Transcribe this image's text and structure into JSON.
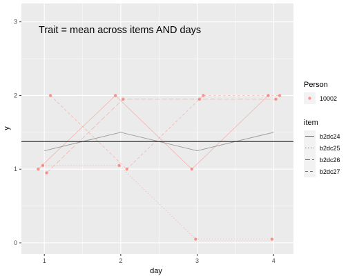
{
  "chart_data": {
    "type": "line",
    "annotation": "Trait = mean across items AND days",
    "xlabel": "day",
    "ylabel": "y",
    "x_ticks": [
      "1",
      "2",
      "3",
      "4"
    ],
    "y_ticks": [
      "0",
      "1",
      "2",
      "3"
    ],
    "xlim": [
      0.7,
      4.26
    ],
    "ylim": [
      -0.15,
      3.25
    ],
    "grid": true,
    "legend_position": "right",
    "person_legend": {
      "title": "Person",
      "entries": [
        {
          "label": "10002",
          "color": "#F8766D"
        }
      ]
    },
    "item_legend": {
      "title": "item",
      "entries": [
        {
          "label": "b2dc24",
          "dash": "solid"
        },
        {
          "label": "b2dc25",
          "dash": "dotted"
        },
        {
          "label": "b2dc26",
          "dash": "longdash"
        },
        {
          "label": "b2dc27",
          "dash": "dashed"
        }
      ]
    },
    "trait_line": {
      "y": 1.375,
      "color": "#000000"
    },
    "mean_series": {
      "color": "#999999",
      "points": [
        {
          "x": 1,
          "y": 1.25
        },
        {
          "x": 2,
          "y": 1.5
        },
        {
          "x": 3,
          "y": 1.25
        },
        {
          "x": 4,
          "y": 1.5
        }
      ]
    },
    "series": [
      {
        "item": "b2dc24",
        "dash": "solid",
        "color": "#F8766D",
        "points": [
          {
            "x": 0.92,
            "y": 1.0
          },
          {
            "x": 1.93,
            "y": 2.0
          },
          {
            "x": 2.93,
            "y": 1.0
          },
          {
            "x": 3.93,
            "y": 2.0
          }
        ]
      },
      {
        "item": "b2dc25",
        "dash": "dotted",
        "color": "#F8766D",
        "points": [
          {
            "x": 0.98,
            "y": 1.05
          },
          {
            "x": 1.98,
            "y": 1.05
          },
          {
            "x": 2.98,
            "y": 0.05
          },
          {
            "x": 3.98,
            "y": 0.05
          }
        ]
      },
      {
        "item": "b2dc26",
        "dash": "longdash",
        "color": "#F8766D",
        "points": [
          {
            "x": 1.03,
            "y": 0.95
          },
          {
            "x": 2.03,
            "y": 1.95
          },
          {
            "x": 3.03,
            "y": 1.95
          },
          {
            "x": 4.03,
            "y": 1.95
          }
        ]
      },
      {
        "item": "b2dc27",
        "dash": "dashed",
        "color": "#F8766D",
        "points": [
          {
            "x": 1.08,
            "y": 2.0
          },
          {
            "x": 2.08,
            "y": 1.0
          },
          {
            "x": 3.08,
            "y": 2.0
          },
          {
            "x": 4.08,
            "y": 2.0
          }
        ]
      }
    ]
  }
}
